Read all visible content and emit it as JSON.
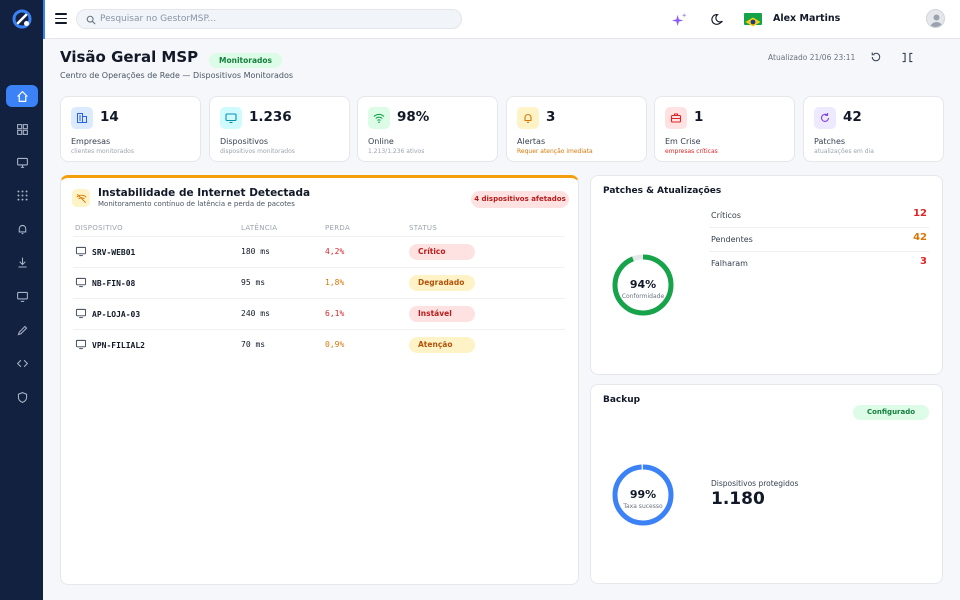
{
  "colors": {
    "sidebar": "#12213f",
    "accent": "#3b82f6",
    "success": "#16a34a",
    "danger": "#dc2626",
    "warning": "#d97706"
  },
  "sidebar": {
    "items": [
      {
        "icon": "home-icon",
        "active": true
      },
      {
        "icon": "grid-icon",
        "active": false
      },
      {
        "icon": "monitor-icon",
        "active": false
      },
      {
        "icon": "apps-icon",
        "active": false
      },
      {
        "icon": "bell-icon",
        "active": false
      },
      {
        "icon": "download-icon",
        "active": false
      },
      {
        "icon": "desktop-icon",
        "active": false
      },
      {
        "icon": "pen-icon",
        "active": false
      },
      {
        "icon": "code-icon",
        "active": false
      },
      {
        "icon": "shield-icon",
        "active": false
      }
    ]
  },
  "topbar": {
    "search_placeholder": "Pesquisar no GestorMSP...",
    "user_name": "Alex Martins"
  },
  "header": {
    "title": "Visão Geral MSP",
    "badge": "Monitorados",
    "subtitle": "Centro de Operações de Rede — Dispositivos Monitorados",
    "updated": "Atualizado 21/06 23:11"
  },
  "kpis": [
    {
      "icon": "building-icon",
      "value": "14",
      "label": "Empresas",
      "sub": "clientes monitorados"
    },
    {
      "icon": "monitor-icon",
      "value": "1.236",
      "label": "Dispositivos",
      "sub": "dispositivos monitorados"
    },
    {
      "icon": "wifi-icon",
      "value": "98%",
      "label": "Online",
      "sub": "1.213/1.236 ativos"
    },
    {
      "icon": "bell-icon",
      "value": "3",
      "label": "Alertas",
      "sub": "Requer atenção imediata"
    },
    {
      "icon": "briefcase-icon",
      "value": "1",
      "label": "Em Crise",
      "sub": "empresas críticas"
    },
    {
      "icon": "refresh-icon",
      "value": "42",
      "label": "Patches",
      "sub": "atualizações em dia"
    }
  ],
  "incident": {
    "title": "Instabilidade de Internet Detectada",
    "subtitle": "Monitoramento contínuo de latência e perda de pacotes",
    "badge": "4 dispositivos afetados",
    "columns": [
      "DISPOSITIVO",
      "LATÊNCIA",
      "PERDA",
      "STATUS"
    ],
    "rows": [
      {
        "device": "SRV-WEB01",
        "latency": "180 ms",
        "loss": "4,2%",
        "status": "Crítico",
        "severity": "red"
      },
      {
        "device": "NB-FIN-08",
        "latency": "95 ms",
        "loss": "1,8%",
        "status": "Degradado",
        "severity": "amber"
      },
      {
        "device": "AP-LOJA-03",
        "latency": "240 ms",
        "loss": "6,1%",
        "status": "Instável",
        "severity": "red"
      },
      {
        "device": "VPN-FILIAL2",
        "latency": "70 ms",
        "loss": "0,9%",
        "status": "Atenção",
        "severity": "amber"
      }
    ]
  },
  "patches": {
    "title": "Patches & Atualizações",
    "percent": 94,
    "percent_label": "94%",
    "donut_caption": "Conformidade",
    "rows": [
      {
        "label": "Críticos",
        "value": "12",
        "color": "#dc2626"
      },
      {
        "label": "Pendentes",
        "value": "42",
        "color": "#d97706"
      },
      {
        "label": "Falharam",
        "value": "3",
        "color": "#dc2626"
      }
    ]
  },
  "backup": {
    "title": "Backup",
    "badge": "Configurado",
    "percent": 99,
    "percent_label": "99%",
    "donut_caption": "Taxa sucesso",
    "protected_label": "Dispositivos protegidos",
    "protected_value": "1.180"
  }
}
